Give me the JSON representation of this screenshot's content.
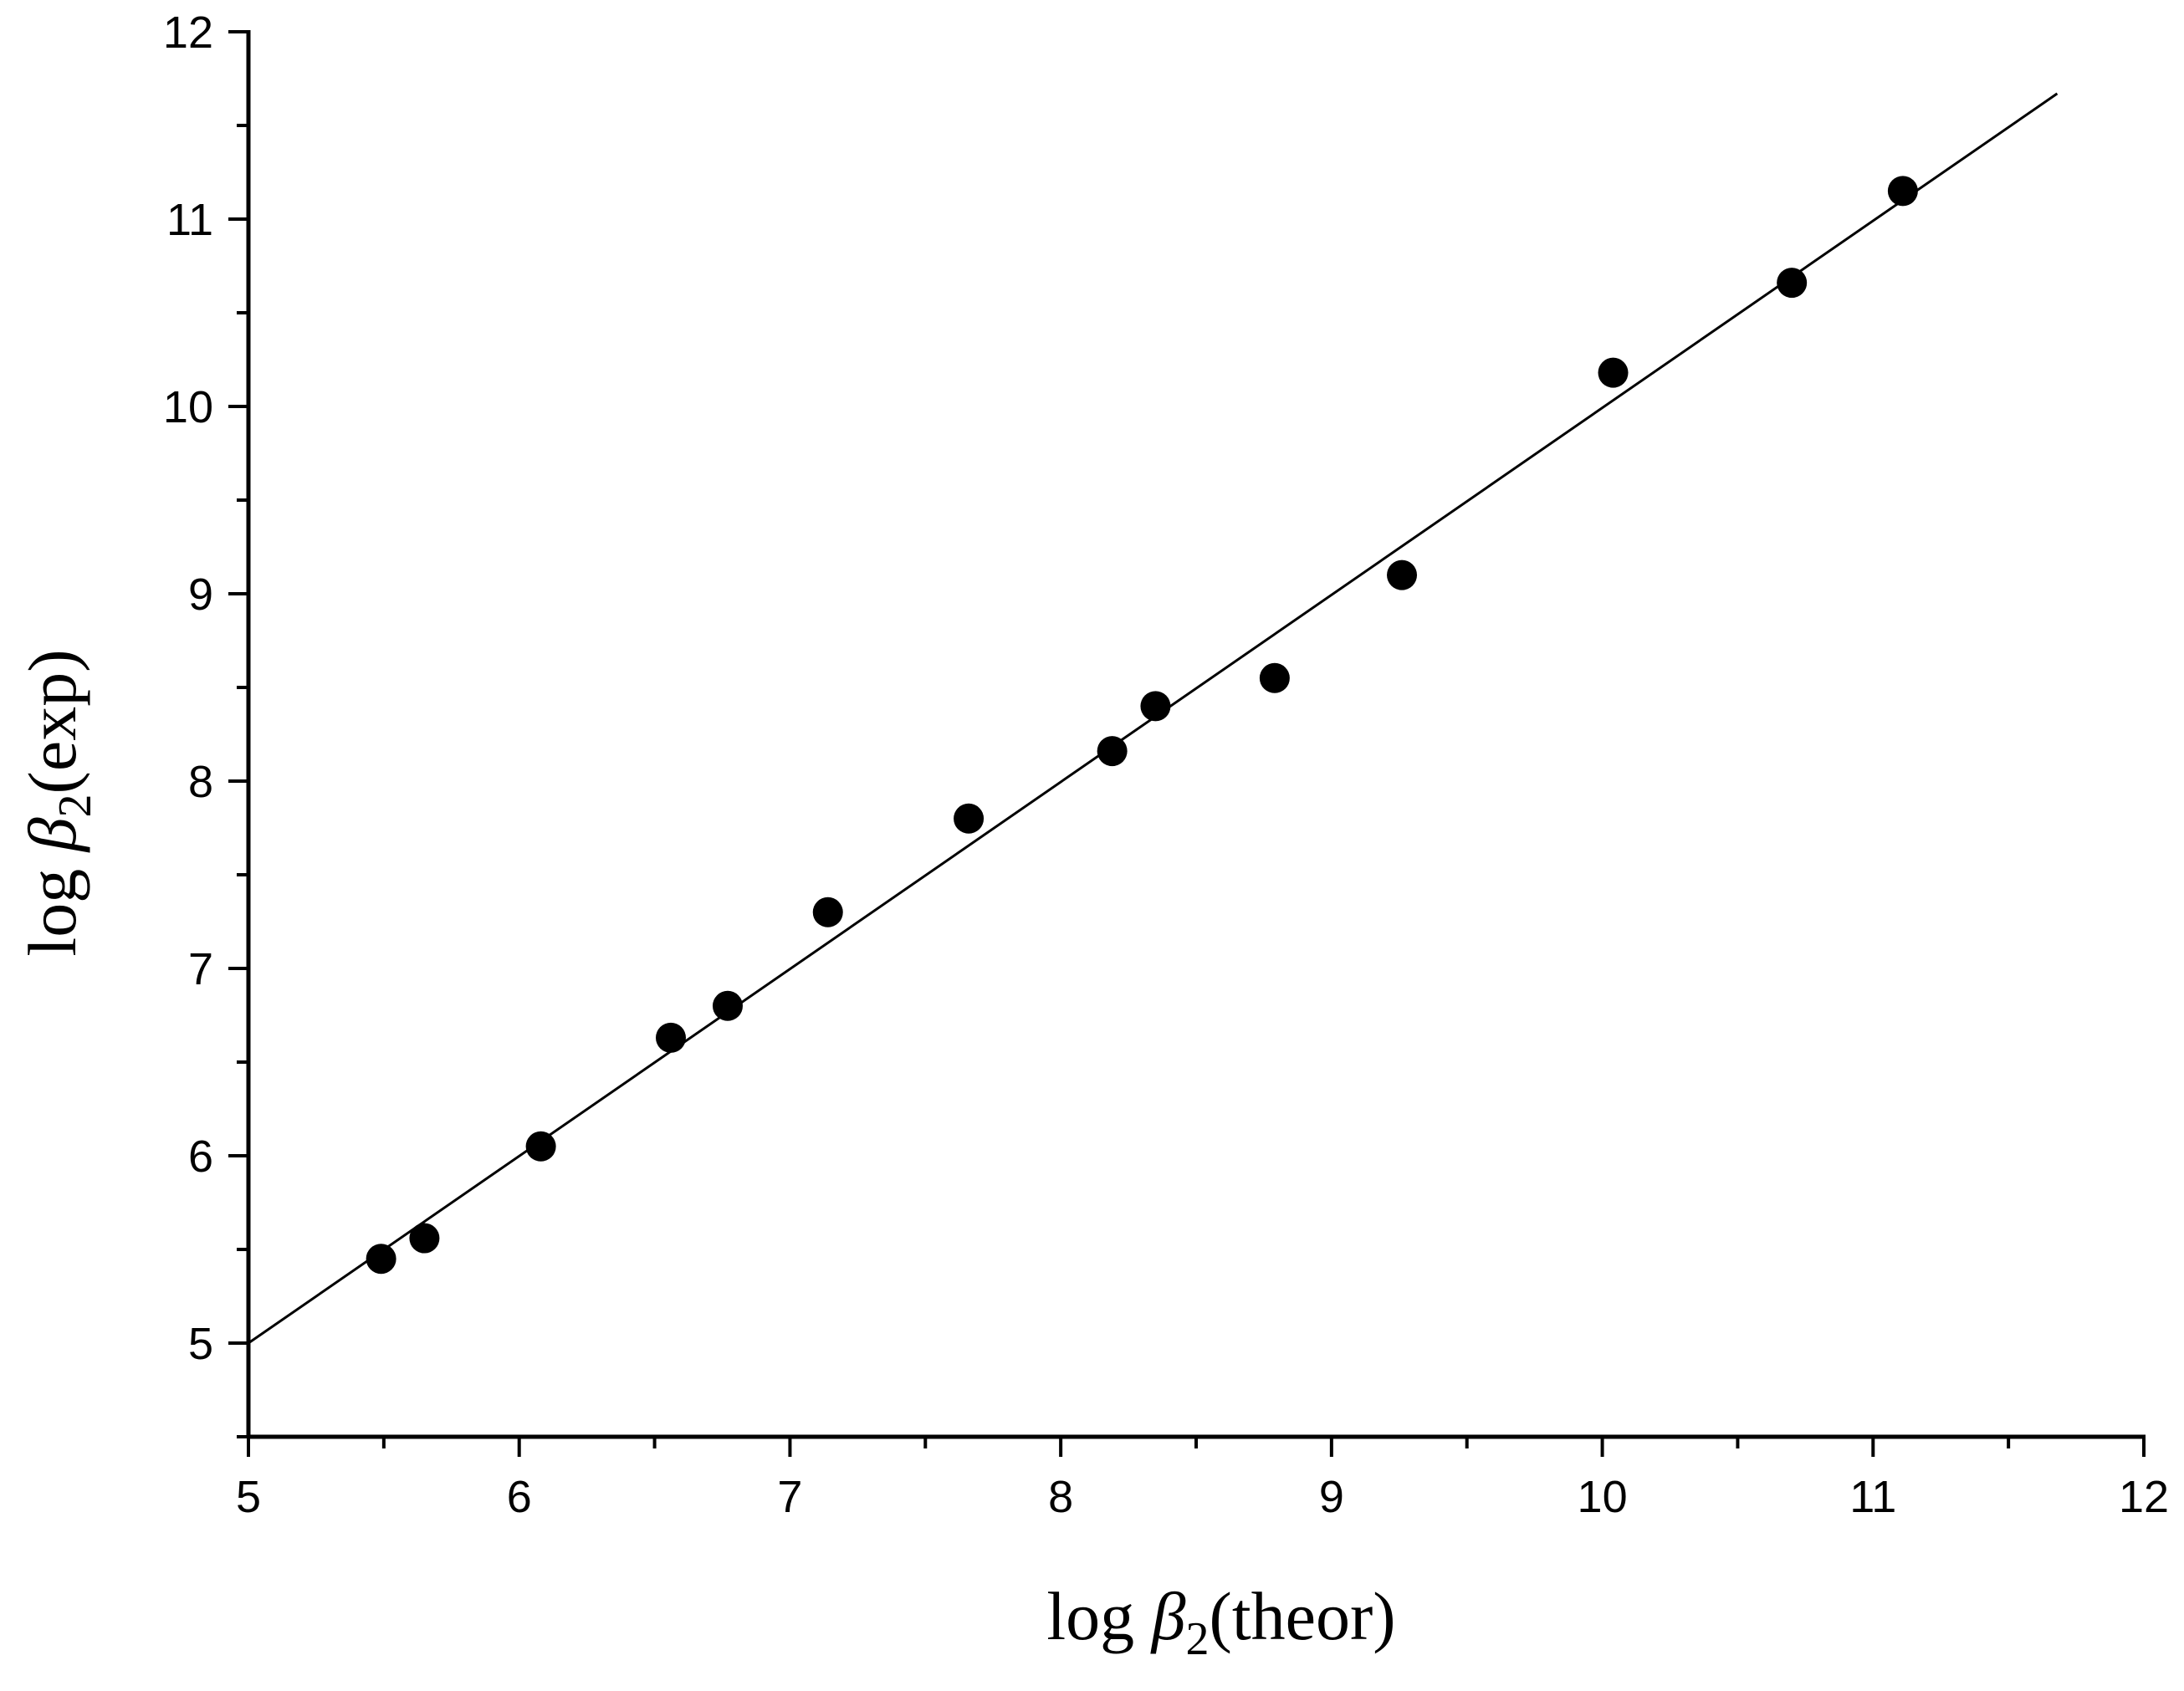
{
  "chart_data": {
    "type": "scatter",
    "xlabel": {
      "prefix": "log ",
      "symbol": "β",
      "subscript": "2",
      "suffix": "(theor)"
    },
    "ylabel": {
      "prefix": "log ",
      "symbol": "β",
      "subscript": "2",
      "suffix": "(exp)"
    },
    "xlim": [
      5,
      12
    ],
    "ylim": [
      4.5,
      12
    ],
    "xticks": [
      "5",
      "6",
      "7",
      "8",
      "9",
      "10",
      "11",
      "12"
    ],
    "yticks": [
      "5",
      "6",
      "7",
      "8",
      "9",
      "10",
      "11",
      "12"
    ],
    "series": [
      {
        "points": [
          {
            "x": 5.49,
            "y": 5.45
          },
          {
            "x": 5.65,
            "y": 5.56
          },
          {
            "x": 6.08,
            "y": 6.05
          },
          {
            "x": 6.56,
            "y": 6.63
          },
          {
            "x": 6.77,
            "y": 6.8
          },
          {
            "x": 7.14,
            "y": 7.3
          },
          {
            "x": 7.66,
            "y": 7.8
          },
          {
            "x": 8.19,
            "y": 8.16
          },
          {
            "x": 8.35,
            "y": 8.4
          },
          {
            "x": 8.79,
            "y": 8.55
          },
          {
            "x": 9.26,
            "y": 9.1
          },
          {
            "x": 10.04,
            "y": 10.18
          },
          {
            "x": 10.7,
            "y": 10.66
          },
          {
            "x": 11.11,
            "y": 11.15
          }
        ]
      }
    ],
    "fit_line": {
      "x": [
        5.0,
        11.68
      ],
      "y": [
        5.0,
        11.67
      ]
    },
    "grid": false,
    "legend": "none"
  }
}
